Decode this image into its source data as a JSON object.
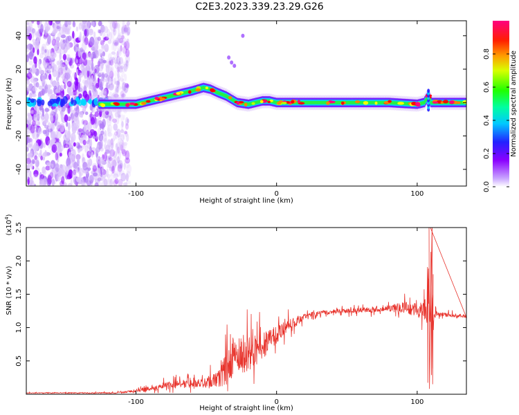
{
  "page": {
    "title": "C2E3.2023.339.23.29.G26"
  },
  "chart_data": [
    {
      "type": "heatmap",
      "title": "C2E3.2023.339.23.29.G26",
      "xlabel": "Height of straight line (km)",
      "ylabel": "Frequency (Hz)",
      "xlim": [
        -178,
        135
      ],
      "ylim": [
        -50,
        49
      ],
      "xticks": [
        -100,
        0,
        100
      ],
      "yticks": [
        -40,
        -20,
        0,
        20,
        40
      ],
      "colorbar": {
        "label": "Normalized spectral amplitude",
        "range": [
          0,
          1
        ],
        "ticks": [
          0.0,
          0.2,
          0.4,
          0.6,
          0.8
        ],
        "colormap": [
          "#e8d8fa",
          "#8a00ff",
          "#2020ff",
          "#00e8ff",
          "#00ff40",
          "#c0ff00",
          "#ffff00",
          "#ff8000",
          "#ff0000",
          "#ff0080"
        ]
      },
      "ridge": {
        "x": [
          -126,
          -110,
          -100,
          -90,
          -80,
          -70,
          -60,
          -52,
          -47,
          -42,
          -36,
          -32,
          -28,
          -20,
          -10,
          -5,
          0,
          20,
          50,
          80,
          100,
          105,
          108,
          110,
          120,
          135
        ],
        "freq": [
          -1,
          -1,
          -1,
          1,
          3,
          5,
          7,
          9,
          8,
          6,
          4,
          2,
          0,
          -1,
          1,
          1,
          0,
          0,
          0,
          0,
          -1,
          0,
          4,
          0,
          0,
          0
        ]
      },
      "noise_region_x": [
        -178,
        -105
      ]
    },
    {
      "type": "line",
      "xlabel": "Height of straight line (km)",
      "ylabel": "SNR (10 * v/v)",
      "y_multiplier": "(x10",
      "y_multiplier_exp": "4",
      "y_multiplier_close": ")",
      "xlim": [
        -178,
        135
      ],
      "ylim": [
        0,
        2.5
      ],
      "xticks": [
        -100,
        0,
        100
      ],
      "yticks": [
        0.5,
        1.0,
        1.5,
        2.0,
        2.5
      ],
      "series": [
        {
          "color": "#e8332c",
          "envelope": {
            "x": [
              -178,
              -140,
              -115,
              -100,
              -90,
              -80,
              -70,
              -60,
              -50,
              -40,
              -35,
              -30,
              -25,
              -20,
              -15,
              -10,
              -5,
              0,
              5,
              10,
              15,
              20,
              25,
              30,
              40,
              50,
              60,
              70,
              80,
              90,
              95,
              100,
              104,
              106,
              107,
              108,
              109,
              110,
              111,
              112,
              115,
              120,
              135
            ],
            "y": [
              0.02,
              0.02,
              0.02,
              0.05,
              0.09,
              0.13,
              0.15,
              0.16,
              0.18,
              0.25,
              0.42,
              0.5,
              0.58,
              0.62,
              0.66,
              0.74,
              0.8,
              0.9,
              1.0,
              1.05,
              1.1,
              1.17,
              1.2,
              1.22,
              1.24,
              1.25,
              1.26,
              1.27,
              1.29,
              1.3,
              1.28,
              1.27,
              1.25,
              1.27,
              1.4,
              1.5,
              1.3,
              1.6,
              1.1,
              1.25,
              1.2,
              1.19,
              1.17
            ]
          },
          "noise_amp": {
            "x": [
              -178,
              -110,
              -90,
              -70,
              -50,
              -40,
              -35,
              -30,
              -20,
              -10,
              0,
              10,
              20,
              30,
              60,
              80,
              90,
              100,
              104,
              106,
              107,
              108,
              109,
              110,
              111,
              112,
              115,
              135
            ],
            "a": [
              0.01,
              0.015,
              0.06,
              0.1,
              0.12,
              0.25,
              0.45,
              0.5,
              0.45,
              0.35,
              0.25,
              0.15,
              0.07,
              0.05,
              0.06,
              0.08,
              0.14,
              0.18,
              0.2,
              0.3,
              0.7,
              1.0,
              0.9,
              1.1,
              0.7,
              0.2,
              0.05,
              0.05
            ]
          }
        }
      ]
    }
  ]
}
